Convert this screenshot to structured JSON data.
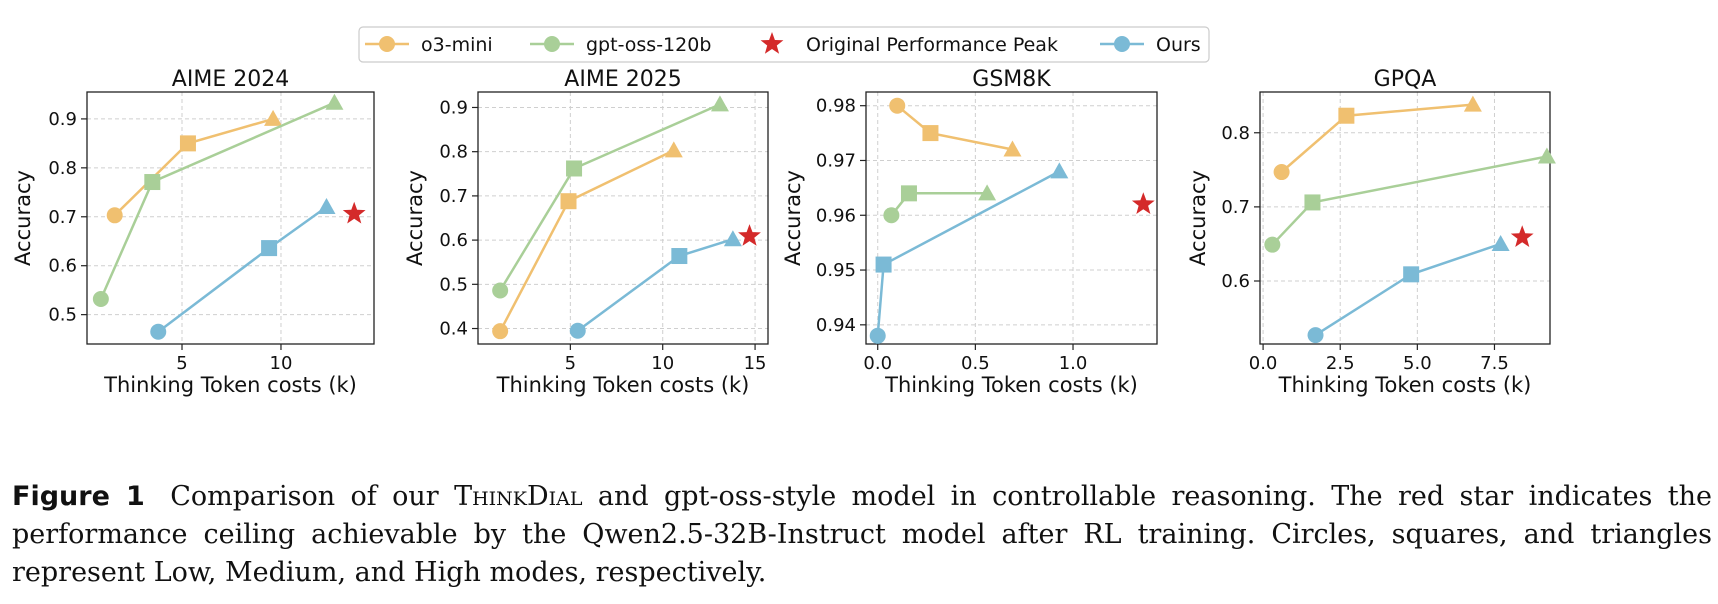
{
  "legend": [
    {
      "label": "o3-mini",
      "kind": "line",
      "color": "#f0c070"
    },
    {
      "label": "gpt-oss-120b",
      "kind": "line",
      "color": "#a9cf98"
    },
    {
      "label": "Original Performance Peak",
      "kind": "star",
      "color": "#d42a2a"
    },
    {
      "label": "Ours",
      "kind": "line",
      "color": "#7bbad6"
    }
  ],
  "colors": {
    "o3-mini": "#f0c070",
    "gpt-oss-120b": "#a9cf98",
    "Ours": "#7bbad6",
    "peak": "#d42a2a"
  },
  "chart_data": [
    {
      "type": "line",
      "title": "AIME 2024",
      "xlabel": "Thinking Token costs (k)",
      "ylabel": "Accuracy",
      "xlim": [
        0.2,
        14.7
      ],
      "ylim": [
        0.44,
        0.955
      ],
      "xticks": [
        {
          "v": 5,
          "label": "5"
        },
        {
          "v": 10,
          "label": "10"
        }
      ],
      "yticks": [
        {
          "v": 0.5,
          "label": "0.5"
        },
        {
          "v": 0.6,
          "label": "0.6"
        },
        {
          "v": 0.7,
          "label": "0.7"
        },
        {
          "v": 0.8,
          "label": "0.8"
        },
        {
          "v": 0.9,
          "label": "0.9"
        }
      ],
      "series": [
        {
          "name": "o3-mini",
          "points": [
            [
              1.6,
              0.703
            ],
            [
              5.3,
              0.85
            ],
            [
              9.6,
              0.9
            ]
          ]
        },
        {
          "name": "gpt-oss-120b",
          "points": [
            [
              0.9,
              0.532
            ],
            [
              3.5,
              0.771
            ],
            [
              12.7,
              0.933
            ]
          ]
        },
        {
          "name": "Ours",
          "points": [
            [
              3.8,
              0.465
            ],
            [
              9.4,
              0.636
            ],
            [
              12.3,
              0.72
            ]
          ]
        }
      ],
      "peak": [
        13.7,
        0.706
      ]
    },
    {
      "type": "line",
      "title": "AIME 2025",
      "xlabel": "Thinking Token costs (k)",
      "ylabel": "Accuracy",
      "xlim": [
        0.0,
        15.7
      ],
      "ylim": [
        0.365,
        0.935
      ],
      "xticks": [
        {
          "v": 5,
          "label": "5"
        },
        {
          "v": 10,
          "label": "10"
        },
        {
          "v": 15,
          "label": "15"
        }
      ],
      "yticks": [
        {
          "v": 0.4,
          "label": "0.4"
        },
        {
          "v": 0.5,
          "label": "0.5"
        },
        {
          "v": 0.6,
          "label": "0.6"
        },
        {
          "v": 0.7,
          "label": "0.7"
        },
        {
          "v": 0.8,
          "label": "0.8"
        },
        {
          "v": 0.9,
          "label": "0.9"
        }
      ],
      "series": [
        {
          "name": "o3-mini",
          "points": [
            [
              1.2,
              0.394
            ],
            [
              4.9,
              0.688
            ],
            [
              10.6,
              0.803
            ]
          ]
        },
        {
          "name": "gpt-oss-120b",
          "points": [
            [
              1.2,
              0.486
            ],
            [
              5.2,
              0.762
            ],
            [
              13.1,
              0.907
            ]
          ]
        },
        {
          "name": "Ours",
          "points": [
            [
              5.4,
              0.395
            ],
            [
              10.9,
              0.564
            ],
            [
              13.8,
              0.602
            ]
          ]
        }
      ],
      "peak": [
        14.7,
        0.609
      ]
    },
    {
      "type": "line",
      "title": "GSM8K",
      "xlabel": "Thinking Token costs (k)",
      "ylabel": "Accuracy",
      "xlim": [
        -0.06,
        1.43
      ],
      "ylim": [
        0.9365,
        0.9825
      ],
      "xticks": [
        {
          "v": 0.0,
          "label": "0.0"
        },
        {
          "v": 0.5,
          "label": "0.5"
        },
        {
          "v": 1.0,
          "label": "1.0"
        }
      ],
      "yticks": [
        {
          "v": 0.94,
          "label": "0.94"
        },
        {
          "v": 0.95,
          "label": "0.95"
        },
        {
          "v": 0.96,
          "label": "0.96"
        },
        {
          "v": 0.97,
          "label": "0.97"
        },
        {
          "v": 0.98,
          "label": "0.98"
        }
      ],
      "series": [
        {
          "name": "o3-mini",
          "points": [
            [
              0.1,
              0.98
            ],
            [
              0.27,
              0.975
            ],
            [
              0.69,
              0.972
            ]
          ]
        },
        {
          "name": "gpt-oss-120b",
          "points": [
            [
              0.07,
              0.96
            ],
            [
              0.16,
              0.964
            ],
            [
              0.56,
              0.964
            ]
          ]
        },
        {
          "name": "Ours",
          "points": [
            [
              0.0,
              0.938
            ],
            [
              0.03,
              0.951
            ],
            [
              0.93,
              0.968
            ]
          ]
        }
      ],
      "peak": [
        1.36,
        0.962
      ]
    },
    {
      "type": "line",
      "title": "GPQA",
      "xlabel": "Thinking Token costs (k)",
      "ylabel": "Accuracy",
      "xlim": [
        -0.1,
        9.3
      ],
      "ylim": [
        0.515,
        0.855
      ],
      "xticks": [
        {
          "v": 0.0,
          "label": "0.0"
        },
        {
          "v": 2.5,
          "label": "2.5"
        },
        {
          "v": 5.0,
          "label": "5.0"
        },
        {
          "v": 7.5,
          "label": "7.5"
        }
      ],
      "yticks": [
        {
          "v": 0.6,
          "label": "0.6"
        },
        {
          "v": 0.7,
          "label": "0.7"
        },
        {
          "v": 0.8,
          "label": "0.8"
        }
      ],
      "series": [
        {
          "name": "o3-mini",
          "points": [
            [
              0.6,
              0.747
            ],
            [
              2.7,
              0.823
            ],
            [
              6.8,
              0.838
            ]
          ]
        },
        {
          "name": "gpt-oss-120b",
          "points": [
            [
              0.3,
              0.649
            ],
            [
              1.6,
              0.706
            ],
            [
              9.2,
              0.768
            ]
          ]
        },
        {
          "name": "Ours",
          "points": [
            [
              1.7,
              0.527
            ],
            [
              4.8,
              0.609
            ],
            [
              7.7,
              0.65
            ]
          ]
        }
      ],
      "peak": [
        8.4,
        0.659
      ]
    }
  ],
  "caption": {
    "label": "Figure 1",
    "text_before": "Comparison of our ",
    "model_name": "ThinkDial",
    "text_after": " and gpt-oss-style model in controllable reasoning. The red star indicates the performance ceiling achievable by the Qwen2.5-32B-Instruct model after RL training. Circles, squares, and triangles represent Low, Medium, and High modes, respectively."
  }
}
